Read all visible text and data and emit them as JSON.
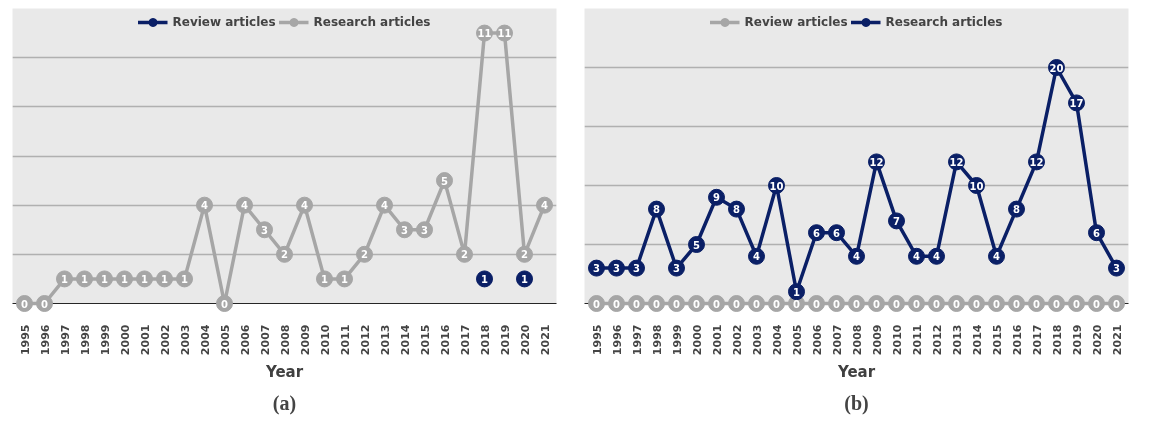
{
  "chart_data": [
    {
      "type": "line",
      "title": "(a)",
      "xlabel": "Year",
      "categories": [
        "1995",
        "1996",
        "1997",
        "1998",
        "1999",
        "2000",
        "2001",
        "2002",
        "2003",
        "2004",
        "2005",
        "2006",
        "2007",
        "2008",
        "2009",
        "2010",
        "2011",
        "2012",
        "2013",
        "2014",
        "2015",
        "2016",
        "2017",
        "2018",
        "2019",
        "2020",
        "2021"
      ],
      "series": [
        {
          "name": "Review articles",
          "color": "#0a1f66",
          "values": [
            null,
            null,
            null,
            null,
            null,
            null,
            null,
            null,
            null,
            null,
            null,
            null,
            null,
            null,
            null,
            null,
            null,
            null,
            null,
            null,
            null,
            null,
            null,
            1,
            null,
            1,
            null
          ]
        },
        {
          "name": "Research articles",
          "color": "#a6a6a6",
          "values": [
            0,
            0,
            1,
            1,
            1,
            1,
            1,
            1,
            1,
            4,
            0,
            4,
            3,
            2,
            4,
            1,
            1,
            2,
            4,
            3,
            3,
            5,
            2,
            11,
            11,
            2,
            4
          ]
        }
      ],
      "ylim": [
        0,
        12
      ],
      "yticks": [
        {
          "value": 0,
          "label": null
        },
        {
          "value": 2,
          "label": null
        },
        {
          "value": 4,
          "label": null
        },
        {
          "value": 6,
          "label": null
        },
        {
          "value": 8,
          "label": null
        },
        {
          "value": 10,
          "label": null
        },
        {
          "value": 12,
          "label": null
        }
      ],
      "tick_labels": "x",
      "grid": "y",
      "legend": "top",
      "marker": "circle",
      "line_style": "solid",
      "data_labels": true
    },
    {
      "type": "line",
      "title": "(b)",
      "xlabel": "Year",
      "categories": [
        "1995",
        "1996",
        "1997",
        "1998",
        "1999",
        "2000",
        "2001",
        "2002",
        "2003",
        "2004",
        "2005",
        "2006",
        "2007",
        "2008",
        "2009",
        "2010",
        "2011",
        "2012",
        "2013",
        "2014",
        "2015",
        "2016",
        "2017",
        "2018",
        "2019",
        "2020",
        "2021"
      ],
      "series": [
        {
          "name": "Review articles",
          "color": "#a6a6a6",
          "values": [
            0,
            0,
            0,
            0,
            0,
            0,
            0,
            0,
            0,
            0,
            0,
            0,
            0,
            0,
            0,
            0,
            0,
            0,
            0,
            0,
            0,
            0,
            0,
            0,
            0,
            0,
            0
          ]
        },
        {
          "name": "Research articles",
          "color": "#0a1f66",
          "values": [
            3,
            3,
            3,
            8,
            3,
            5,
            9,
            8,
            4,
            10,
            1,
            6,
            6,
            4,
            12,
            7,
            4,
            4,
            12,
            10,
            4,
            8,
            12,
            20,
            17,
            6,
            3
          ]
        }
      ],
      "ylim": [
        0,
        25
      ],
      "yticks": [
        {
          "value": 0,
          "label": null
        },
        {
          "value": 5,
          "label": null
        },
        {
          "value": 10,
          "label": null
        },
        {
          "value": 15,
          "label": null
        },
        {
          "value": 20,
          "label": null
        },
        {
          "value": 25,
          "label": null
        }
      ],
      "tick_labels": "x",
      "grid": "y",
      "legend": "top",
      "marker": "circle",
      "line_style": "solid",
      "data_labels": true
    }
  ]
}
